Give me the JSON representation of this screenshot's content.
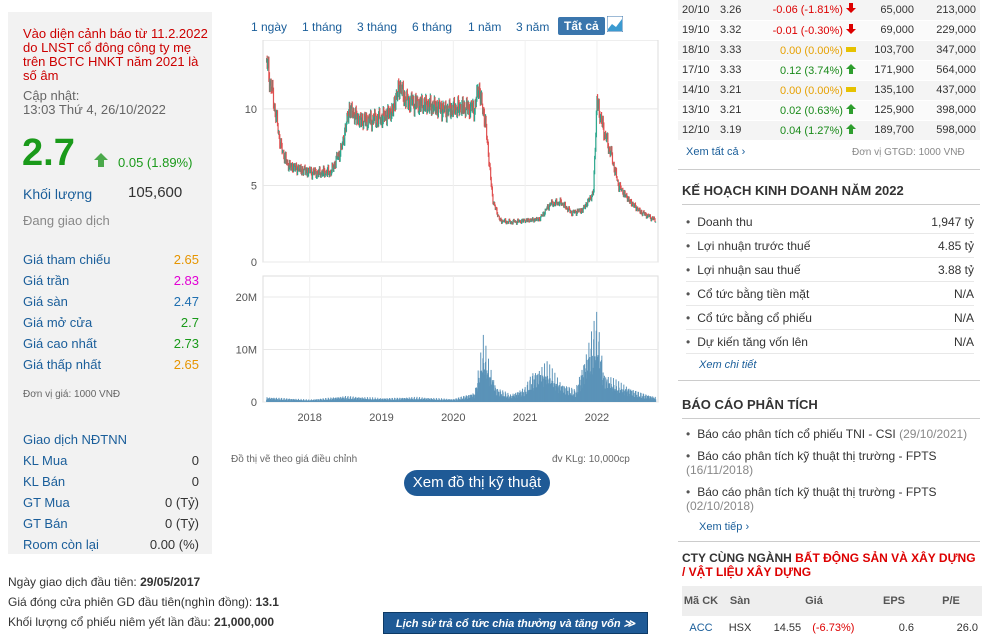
{
  "left": {
    "warning": "Vào diện cảnh báo từ 11.2.2022 do LNST cổ đông công ty mẹ trên BCTC HNKT năm 2021 là số âm",
    "updated_label": "Cập nhật:",
    "updated_time": "13:03 Thứ 4, 26/10/2022",
    "price": "2.7",
    "change": "0.05 (1.89%)",
    "volume_label": "Khối lượng",
    "volume": "105,600",
    "status": "Đang giao dịch",
    "stats": [
      {
        "label": "Giá tham chiếu",
        "value": "2.65",
        "color": "#e69500"
      },
      {
        "label": "Giá trần",
        "value": "2.83",
        "color": "#e200d4"
      },
      {
        "label": "Giá sàn",
        "value": "2.47",
        "color": "#1f6fb0"
      },
      {
        "label": "Giá mở cửa",
        "value": "2.7",
        "color": "#1a9a1a"
      },
      {
        "label": "Giá cao nhất",
        "value": "2.73",
        "color": "#1a9a1a"
      },
      {
        "label": "Giá thấp nhất",
        "value": "2.65",
        "color": "#e69500"
      }
    ],
    "unit_note": "Đơn vị giá: 1000 VNĐ",
    "foreign_title": "Giao dịch NĐTNN",
    "foreign": [
      {
        "label": "KL Mua",
        "value": "0"
      },
      {
        "label": "KL Bán",
        "value": "0"
      },
      {
        "label": "GT Mua",
        "value": "0 (Tỷ)"
      },
      {
        "label": "GT Bán",
        "value": "0 (Tỷ)"
      },
      {
        "label": "Room còn lại",
        "value": "0.00 (%)"
      }
    ]
  },
  "bottom_info": {
    "first_day_label": "Ngày giao dịch đầu tiên:",
    "first_day": "29/05/2017",
    "first_close_label": "Giá đóng cửa phiên GD đầu tiên(nghìn đồng):",
    "first_close": "13.1",
    "listed_label": "Khối lượng cổ phiếu niêm yết lần đầu:",
    "listed": "21,000,000"
  },
  "tabs": [
    "1 ngày",
    "1 tháng",
    "3 tháng",
    "6 tháng",
    "1 năm",
    "3 năm",
    "Tất cả"
  ],
  "chart_data": {
    "type": "line",
    "price_axis_ticks": [
      "0",
      "5",
      "10"
    ],
    "volume_axis_ticks": [
      "0",
      "10M",
      "20M"
    ],
    "x_ticks": [
      "2018",
      "2019",
      "2020",
      "2021",
      "2022"
    ],
    "price_points": [
      [
        2017.4,
        13.1
      ],
      [
        2017.5,
        10.5
      ],
      [
        2017.6,
        7.5
      ],
      [
        2017.7,
        6.3
      ],
      [
        2017.9,
        6.0
      ],
      [
        2018.1,
        5.8
      ],
      [
        2018.3,
        5.9
      ],
      [
        2018.45,
        7.5
      ],
      [
        2018.55,
        10.0
      ],
      [
        2018.7,
        9.2
      ],
      [
        2018.9,
        9.3
      ],
      [
        2019.0,
        9.4
      ],
      [
        2019.15,
        9.8
      ],
      [
        2019.25,
        11.5
      ],
      [
        2019.35,
        10.5
      ],
      [
        2019.5,
        10.3
      ],
      [
        2019.7,
        10.2
      ],
      [
        2019.9,
        9.9
      ],
      [
        2020.1,
        10.1
      ],
      [
        2020.3,
        10.0
      ],
      [
        2020.35,
        11.5
      ],
      [
        2020.45,
        9.0
      ],
      [
        2020.55,
        4.0
      ],
      [
        2020.65,
        2.7
      ],
      [
        2020.8,
        2.6
      ],
      [
        2021.0,
        2.7
      ],
      [
        2021.2,
        2.8
      ],
      [
        2021.35,
        3.8
      ],
      [
        2021.5,
        3.9
      ],
      [
        2021.65,
        3.2
      ],
      [
        2021.8,
        3.4
      ],
      [
        2021.95,
        4.5
      ],
      [
        2022.0,
        10.5
      ],
      [
        2022.1,
        8.5
      ],
      [
        2022.2,
        7.0
      ],
      [
        2022.3,
        5.0
      ],
      [
        2022.45,
        4.0
      ],
      [
        2022.6,
        3.3
      ],
      [
        2022.75,
        2.9
      ],
      [
        2022.82,
        2.7
      ]
    ],
    "volume_points": [
      [
        2017.4,
        1.0
      ],
      [
        2018.0,
        0.5
      ],
      [
        2018.5,
        1.2
      ],
      [
        2019.0,
        0.8
      ],
      [
        2019.5,
        1.0
      ],
      [
        2020.0,
        0.6
      ],
      [
        2020.3,
        2.0
      ],
      [
        2020.42,
        13.0
      ],
      [
        2020.5,
        8.0
      ],
      [
        2020.6,
        3.0
      ],
      [
        2020.8,
        1.5
      ],
      [
        2021.0,
        3.0
      ],
      [
        2021.1,
        6.0
      ],
      [
        2021.3,
        8.0
      ],
      [
        2021.5,
        4.0
      ],
      [
        2021.7,
        2.5
      ],
      [
        2021.85,
        10.0
      ],
      [
        2022.0,
        18.0
      ],
      [
        2022.1,
        6.0
      ],
      [
        2022.3,
        4.0
      ],
      [
        2022.6,
        2.0
      ],
      [
        2022.82,
        1.0
      ]
    ],
    "x_range": [
      2017.35,
      2022.85
    ],
    "price_range": [
      0,
      14.5
    ],
    "volume_range": [
      0,
      24
    ]
  },
  "chart_notes": {
    "left": "Đồ thị vẽ theo giá điều chỉnh",
    "right": "đv KLg: 10,000cp"
  },
  "buttons": {
    "tech_chart": "Xem đồ thị kỹ thuật",
    "dividend_history": "Lịch sử trả cổ tức chia thưởng và tăng vốn ≫"
  },
  "price_history": [
    {
      "date": "20/10",
      "price": "3.26",
      "change": "-0.06 (-1.81%)",
      "dir": "down",
      "vol": "65,000",
      "val": "213,000"
    },
    {
      "date": "19/10",
      "price": "3.32",
      "change": "-0.01 (-0.30%)",
      "dir": "down",
      "vol": "69,000",
      "val": "229,000"
    },
    {
      "date": "18/10",
      "price": "3.33",
      "change": "0.00 (0.00%)",
      "dir": "ref",
      "vol": "103,700",
      "val": "347,000"
    },
    {
      "date": "17/10",
      "price": "3.33",
      "change": "0.12 (3.74%)",
      "dir": "up",
      "vol": "171,900",
      "val": "564,000"
    },
    {
      "date": "14/10",
      "price": "3.21",
      "change": "0.00 (0.00%)",
      "dir": "ref",
      "vol": "135,100",
      "val": "437,000"
    },
    {
      "date": "13/10",
      "price": "3.21",
      "change": "0.02 (0.63%)",
      "dir": "up",
      "vol": "125,900",
      "val": "398,000"
    },
    {
      "date": "12/10",
      "price": "3.19",
      "change": "0.04 (1.27%)",
      "dir": "up",
      "vol": "189,700",
      "val": "598,000"
    }
  ],
  "history_link": "Xem tất cả",
  "history_unit": "Đơn vị GTGD: 1000 VNĐ",
  "plan": {
    "title": "KẾ HOẠCH KINH DOANH NĂM 2022",
    "rows": [
      {
        "label": "Doanh thu",
        "value": "1,947 tỷ"
      },
      {
        "label": "Lợi nhuận trước thuế",
        "value": "4.85 tỷ"
      },
      {
        "label": "Lợi nhuận sau thuế",
        "value": "3.88 tỷ"
      },
      {
        "label": "Cổ tức bằng tiền mặt",
        "value": "N/A"
      },
      {
        "label": "Cổ tức bằng cổ phiếu",
        "value": "N/A"
      },
      {
        "label": "Dự kiến tăng vốn lên",
        "value": "N/A"
      }
    ],
    "link": "Xem chi tiết"
  },
  "reports": {
    "title": "BÁO CÁO PHÂN TÍCH",
    "items": [
      {
        "text": "Báo cáo phân tích cổ phiếu TNI - CSI",
        "date": "(29/10/2021)"
      },
      {
        "text": "Báo cáo phân tích kỹ thuật thị trường - FPTS",
        "date": "(16/11/2018)"
      },
      {
        "text": "Báo cáo phân tích kỹ thuật thị trường - FPTS",
        "date": "(02/10/2018)"
      }
    ],
    "link": "Xem tiếp"
  },
  "peers": {
    "title_prefix": "CTY CÙNG NGÀNH",
    "title_industry": "BẤT ĐỘNG SẢN VÀ XÂY DỰNG / VẬT LIỆU XÂY DỰNG",
    "headers": [
      "Mã CK",
      "Sàn",
      "Giá",
      "EPS",
      "P/E"
    ],
    "rows": [
      {
        "code": "ACC",
        "exchange": "HSX",
        "price": "14.55",
        "change": "(-6.73%)",
        "eps": "0.6",
        "pe": "26.0"
      }
    ]
  },
  "colors": {
    "up": "#1a8a1a",
    "down": "#d00000",
    "ref": "#e6a000",
    "candle_up": "#2aa68c",
    "candle_down": "#e05050",
    "volume": "#5b93b8",
    "link": "#1a5e9a"
  }
}
